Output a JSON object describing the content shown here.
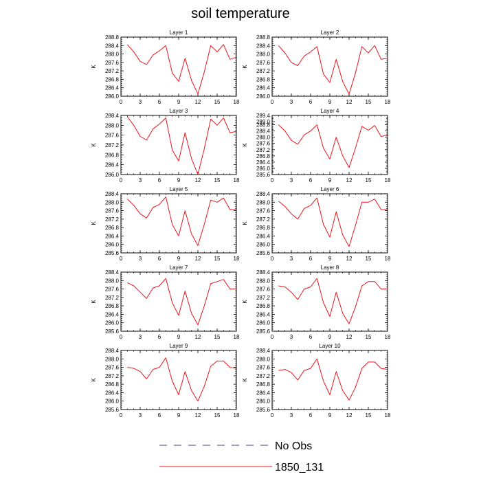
{
  "figure": {
    "title": "soil temperature"
  },
  "legend": [
    {
      "label": "No Obs",
      "color": "#3c3c8c",
      "dash": true
    },
    {
      "label": "1850_131",
      "color": "#e8151b",
      "dash": false
    }
  ],
  "chart_data": [
    {
      "type": "line",
      "title": "Layer 1",
      "ylabel": "K",
      "xlim": [
        0,
        18
      ],
      "ylim": [
        286.0,
        288.8
      ],
      "xticks": [
        0,
        3,
        6,
        9,
        12,
        15,
        18
      ],
      "yticks": [
        286.0,
        286.4,
        286.8,
        287.2,
        287.6,
        288.0,
        288.4,
        288.8
      ],
      "ytick_labels": [
        "286.0",
        "286.4",
        "286.8",
        "287.2",
        "287.6",
        "288.0",
        "288.4",
        "288.8"
      ],
      "series": [
        {
          "color": "#e8151b",
          "x": [
            1,
            2,
            3,
            4,
            5,
            6,
            7,
            8,
            9,
            10,
            11,
            12,
            13,
            14,
            15,
            16,
            17,
            18
          ],
          "y": [
            288.45,
            288.1,
            287.65,
            287.5,
            287.95,
            288.15,
            288.4,
            287.1,
            286.7,
            287.8,
            286.75,
            286.1,
            287.15,
            288.4,
            288.1,
            288.45,
            287.75,
            287.85
          ]
        }
      ]
    },
    {
      "type": "line",
      "title": "Layer 2",
      "ylabel": "K",
      "xlim": [
        0,
        18
      ],
      "ylim": [
        286.0,
        288.8
      ],
      "xticks": [
        0,
        3,
        6,
        9,
        12,
        15,
        18
      ],
      "yticks": [
        286.0,
        286.4,
        286.8,
        287.2,
        287.6,
        288.0,
        288.4,
        288.8
      ],
      "ytick_labels": [
        "286.0",
        "286.4",
        "286.8",
        "287.2",
        "287.6",
        "288.0",
        "288.4",
        "288.8"
      ],
      "series": [
        {
          "color": "#e8151b",
          "x": [
            1,
            2,
            3,
            4,
            5,
            6,
            7,
            8,
            9,
            10,
            11,
            12,
            13,
            14,
            15,
            16,
            17,
            18
          ],
          "y": [
            288.4,
            288.05,
            287.6,
            287.45,
            287.9,
            288.1,
            288.35,
            287.05,
            286.65,
            287.75,
            286.7,
            286.1,
            287.1,
            288.35,
            288.05,
            288.4,
            287.75,
            287.8
          ]
        }
      ]
    },
    {
      "type": "line",
      "title": "Layer 3",
      "ylabel": "K",
      "xlim": [
        0,
        18
      ],
      "ylim": [
        286.0,
        288.4
      ],
      "xticks": [
        0,
        3,
        6,
        9,
        12,
        15,
        18
      ],
      "yticks": [
        286.0,
        286.4,
        286.8,
        287.2,
        287.6,
        288.0,
        288.4
      ],
      "ytick_labels": [
        "286.0",
        "286.4",
        "286.8",
        "287.2",
        "287.6",
        "288.0",
        "288.4"
      ],
      "series": [
        {
          "color": "#e8151b",
          "x": [
            1,
            2,
            3,
            4,
            5,
            6,
            7,
            8,
            9,
            10,
            11,
            12,
            13,
            14,
            15,
            16,
            17,
            18
          ],
          "y": [
            288.35,
            288.0,
            287.55,
            287.4,
            287.85,
            288.05,
            288.3,
            287.0,
            286.55,
            287.7,
            286.65,
            286.0,
            287.05,
            288.25,
            288.0,
            288.3,
            287.7,
            287.75
          ]
        }
      ]
    },
    {
      "type": "line",
      "title": "Layer 4",
      "ylabel": "K",
      "xlim": [
        0,
        18
      ],
      "ylim": [
        285.6,
        289.4
      ],
      "xticks": [
        0,
        3,
        6,
        9,
        12,
        15,
        18
      ],
      "yticks": [
        285.6,
        286.0,
        286.4,
        286.8,
        287.2,
        287.6,
        288.0,
        288.4,
        288.8,
        289.0,
        289.4
      ],
      "ytick_labels": [
        "285.6",
        "286.0",
        "286.4",
        "286.8",
        "287.2",
        "287.6",
        "288.0",
        "288.4",
        "288.8",
        "289.0",
        "289.4"
      ],
      "series": [
        {
          "color": "#e8151b",
          "x": [
            1,
            2,
            3,
            4,
            5,
            6,
            7,
            8,
            9,
            10,
            11,
            12,
            13,
            14,
            15,
            16,
            17,
            18
          ],
          "y": [
            288.8,
            288.4,
            287.8,
            287.55,
            288.15,
            288.4,
            288.8,
            287.3,
            286.6,
            288.0,
            286.8,
            286.05,
            287.3,
            288.7,
            288.45,
            288.75,
            288.05,
            288.15
          ]
        }
      ]
    },
    {
      "type": "line",
      "title": "Layer 5",
      "ylabel": "K",
      "xlim": [
        0,
        18
      ],
      "ylim": [
        285.6,
        288.4
      ],
      "xticks": [
        0,
        3,
        6,
        9,
        12,
        15,
        18
      ],
      "yticks": [
        285.6,
        286.0,
        286.4,
        286.8,
        287.2,
        287.6,
        288.0,
        288.4
      ],
      "ytick_labels": [
        "285.6",
        "286.0",
        "286.4",
        "286.8",
        "287.2",
        "287.6",
        "288.0",
        "288.4"
      ],
      "series": [
        {
          "color": "#e8151b",
          "x": [
            1,
            2,
            3,
            4,
            5,
            6,
            7,
            8,
            9,
            10,
            11,
            12,
            13,
            14,
            15,
            16,
            17,
            18
          ],
          "y": [
            288.15,
            287.85,
            287.45,
            287.25,
            287.75,
            287.9,
            288.25,
            286.95,
            286.4,
            287.6,
            286.5,
            285.95,
            286.95,
            288.1,
            288.0,
            288.2,
            287.65,
            287.65
          ]
        }
      ]
    },
    {
      "type": "line",
      "title": "Layer 6",
      "ylabel": "K",
      "xlim": [
        0,
        18
      ],
      "ylim": [
        285.6,
        288.4
      ],
      "xticks": [
        0,
        3,
        6,
        9,
        12,
        15,
        18
      ],
      "yticks": [
        285.6,
        286.0,
        286.4,
        286.8,
        287.2,
        287.6,
        288.0,
        288.4
      ],
      "ytick_labels": [
        "285.6",
        "286.0",
        "286.4",
        "286.8",
        "287.2",
        "287.6",
        "288.0",
        "288.4"
      ],
      "series": [
        {
          "color": "#e8151b",
          "x": [
            1,
            2,
            3,
            4,
            5,
            6,
            7,
            8,
            9,
            10,
            11,
            12,
            13,
            14,
            15,
            16,
            17,
            18
          ],
          "y": [
            288.05,
            287.8,
            287.45,
            287.2,
            287.7,
            287.85,
            288.2,
            286.95,
            286.35,
            287.55,
            286.45,
            285.9,
            286.9,
            288.0,
            288.0,
            288.15,
            287.65,
            287.65
          ]
        }
      ]
    },
    {
      "type": "line",
      "title": "Layer 7",
      "ylabel": "K",
      "xlim": [
        0,
        18
      ],
      "ylim": [
        285.6,
        288.4
      ],
      "xticks": [
        0,
        3,
        6,
        9,
        12,
        15,
        18
      ],
      "yticks": [
        285.6,
        286.0,
        286.4,
        286.8,
        287.2,
        287.6,
        288.0,
        288.4
      ],
      "ytick_labels": [
        "285.6",
        "286.0",
        "286.4",
        "286.8",
        "287.2",
        "287.6",
        "288.0",
        "288.4"
      ],
      "series": [
        {
          "color": "#e8151b",
          "x": [
            1,
            2,
            3,
            4,
            5,
            6,
            7,
            8,
            9,
            10,
            11,
            12,
            13,
            14,
            15,
            16,
            17,
            18
          ],
          "y": [
            287.9,
            287.75,
            287.45,
            287.15,
            287.65,
            287.75,
            288.1,
            286.95,
            286.35,
            287.5,
            286.45,
            285.9,
            286.8,
            287.85,
            287.95,
            288.05,
            287.6,
            287.6
          ]
        }
      ]
    },
    {
      "type": "line",
      "title": "Layer 8",
      "ylabel": "K",
      "xlim": [
        0,
        18
      ],
      "ylim": [
        285.6,
        288.4
      ],
      "xticks": [
        0,
        3,
        6,
        9,
        12,
        15,
        18
      ],
      "yticks": [
        285.6,
        286.0,
        286.4,
        286.8,
        287.2,
        287.6,
        288.0,
        288.4
      ],
      "ytick_labels": [
        "285.6",
        "286.0",
        "286.4",
        "286.8",
        "287.2",
        "287.6",
        "288.0",
        "288.4"
      ],
      "series": [
        {
          "color": "#e8151b",
          "x": [
            1,
            2,
            3,
            4,
            5,
            6,
            7,
            8,
            9,
            10,
            11,
            12,
            13,
            14,
            15,
            16,
            17,
            18
          ],
          "y": [
            287.75,
            287.7,
            287.45,
            287.1,
            287.6,
            287.7,
            288.1,
            286.95,
            286.3,
            287.45,
            286.45,
            285.95,
            286.75,
            287.75,
            287.95,
            287.95,
            287.6,
            287.6
          ]
        }
      ]
    },
    {
      "type": "line",
      "title": "Layer 9",
      "ylabel": "K",
      "xlim": [
        0,
        18
      ],
      "ylim": [
        285.6,
        288.4
      ],
      "xticks": [
        0,
        3,
        6,
        9,
        12,
        15,
        18
      ],
      "yticks": [
        285.6,
        286.0,
        286.4,
        286.8,
        287.2,
        287.6,
        288.0,
        288.4
      ],
      "ytick_labels": [
        "285.6",
        "286.0",
        "286.4",
        "286.8",
        "287.2",
        "287.6",
        "288.0",
        "288.4"
      ],
      "series": [
        {
          "color": "#e8151b",
          "x": [
            1,
            2,
            3,
            4,
            5,
            6,
            7,
            8,
            9,
            10,
            11,
            12,
            13,
            14,
            15,
            16,
            17,
            18
          ],
          "y": [
            287.6,
            287.55,
            287.4,
            287.05,
            287.5,
            287.6,
            288.05,
            286.95,
            286.3,
            287.4,
            286.5,
            286.0,
            286.7,
            287.65,
            287.9,
            287.9,
            287.6,
            287.55
          ]
        }
      ]
    },
    {
      "type": "line",
      "title": "Layer 10",
      "ylabel": "K",
      "xlim": [
        0,
        18
      ],
      "ylim": [
        285.6,
        288.4
      ],
      "xticks": [
        0,
        3,
        6,
        9,
        12,
        15,
        18
      ],
      "yticks": [
        285.6,
        286.0,
        286.4,
        286.8,
        287.2,
        287.6,
        288.0,
        288.4
      ],
      "ytick_labels": [
        "285.6",
        "286.0",
        "286.4",
        "286.8",
        "287.2",
        "287.6",
        "288.0",
        "288.4"
      ],
      "series": [
        {
          "color": "#e8151b",
          "x": [
            1,
            2,
            3,
            4,
            5,
            6,
            7,
            8,
            9,
            10,
            11,
            12,
            13,
            14,
            15,
            16,
            17,
            18
          ],
          "y": [
            287.45,
            287.5,
            287.35,
            287.0,
            287.45,
            287.55,
            288.0,
            286.95,
            286.3,
            287.4,
            286.5,
            286.05,
            286.65,
            287.55,
            287.85,
            287.85,
            287.55,
            287.5
          ]
        }
      ]
    }
  ]
}
